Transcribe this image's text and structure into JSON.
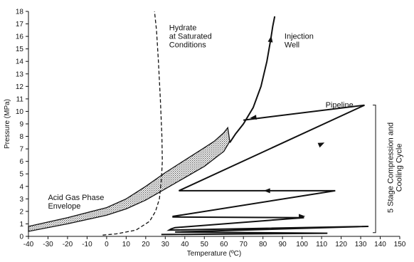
{
  "chart_data": {
    "type": "line",
    "xlabel": "Temperature (ºC)",
    "ylabel": "Pressure (MPa)",
    "xlim": [
      -40,
      150
    ],
    "ylim": [
      0,
      18
    ],
    "x_ticks": [
      -40,
      -30,
      -20,
      -10,
      0,
      10,
      20,
      30,
      40,
      50,
      60,
      70,
      80,
      90,
      100,
      110,
      120,
      130,
      140,
      150
    ],
    "y_ticks": [
      0,
      1,
      2,
      3,
      4,
      5,
      6,
      7,
      8,
      9,
      10,
      11,
      12,
      13,
      14,
      15,
      16,
      17,
      18
    ],
    "grid": false,
    "series": [
      {
        "name": "Acid Gas Phase Envelope",
        "style": "shaded-band",
        "upper": [
          [
            -40,
            0.8
          ],
          [
            -20,
            1.5
          ],
          [
            0,
            2.3
          ],
          [
            10,
            3.0
          ],
          [
            20,
            4.0
          ],
          [
            30,
            5.1
          ],
          [
            40,
            6.1
          ],
          [
            50,
            7.1
          ],
          [
            55,
            7.6
          ],
          [
            60,
            8.3
          ],
          [
            62,
            8.7
          ]
        ],
        "lower": [
          [
            -40,
            0.4
          ],
          [
            -20,
            1.0
          ],
          [
            0,
            1.7
          ],
          [
            10,
            2.2
          ],
          [
            20,
            2.9
          ],
          [
            30,
            3.8
          ],
          [
            40,
            4.7
          ],
          [
            50,
            5.6
          ],
          [
            60,
            6.8
          ],
          [
            63,
            7.6
          ],
          [
            62,
            8.7
          ]
        ]
      },
      {
        "name": "Hydrate at Saturated Conditions",
        "style": "dashed",
        "points": [
          [
            -2,
            0.1
          ],
          [
            5,
            0.2
          ],
          [
            15,
            0.5
          ],
          [
            22,
            1.2
          ],
          [
            25,
            2.0
          ],
          [
            27,
            3.0
          ],
          [
            28,
            4.5
          ],
          [
            28.5,
            6
          ],
          [
            28.3,
            8
          ],
          [
            27.5,
            11
          ],
          [
            26.5,
            14
          ],
          [
            25.5,
            16.5
          ],
          [
            24.5,
            18
          ]
        ]
      },
      {
        "name": "Injection Well",
        "style": "solid-arrow",
        "points": [
          [
            63,
            7.5
          ],
          [
            66,
            8.2
          ],
          [
            70,
            9.0
          ],
          [
            75,
            10.3
          ],
          [
            79,
            12.0
          ],
          [
            82,
            14.0
          ],
          [
            84,
            15.8
          ],
          [
            85,
            16.8
          ],
          [
            86,
            17.6
          ]
        ],
        "arrow_at": [
          84,
          15.8
        ]
      },
      {
        "name": "Pipeline",
        "style": "solid-arrow",
        "points": [
          [
            132,
            10.5
          ],
          [
            70,
            9.3
          ]
        ],
        "arrow_at": [
          75,
          9.5
        ]
      },
      {
        "name": "5 Stage Compression and Cooling Cycle",
        "style": "solid-arrow",
        "points": [
          [
            28,
            0.15
          ],
          [
            113,
            0.25
          ],
          [
            35,
            0.35
          ],
          [
            134,
            0.8
          ],
          [
            32,
            0.5
          ],
          [
            33,
            0.6
          ],
          [
            35,
            0.7
          ],
          [
            101,
            1.5
          ],
          [
            34,
            1.55
          ],
          [
            34,
            1.6
          ],
          [
            117,
            3.65
          ],
          [
            37,
            3.65
          ],
          [
            132,
            10.5
          ]
        ],
        "arrows_at": [
          [
            100,
            1.6
          ],
          [
            82,
            3.65
          ],
          [
            110,
            7.4
          ]
        ]
      }
    ],
    "annotations": [
      {
        "text_lines": [
          "Acid Gas Phase",
          "Envelope"
        ],
        "x": -30,
        "y": 2.9
      },
      {
        "text_lines": [
          "Hydrate",
          "at Saturated",
          "Conditions"
        ],
        "x": 32,
        "y": 16.5
      },
      {
        "text_lines": [
          "Injection",
          "Well"
        ],
        "x": 91,
        "y": 15.8
      },
      {
        "text_lines": [
          "Pipeline"
        ],
        "x": 112,
        "y": 10.3
      },
      {
        "text_lines": [
          "5 Stage Compression and",
          "Cooling Cycle"
        ],
        "x": 145,
        "y": 5.5,
        "rotated": true
      }
    ],
    "bracket": {
      "x": 134,
      "y_from": 0.3,
      "y_to": 10.5
    }
  }
}
